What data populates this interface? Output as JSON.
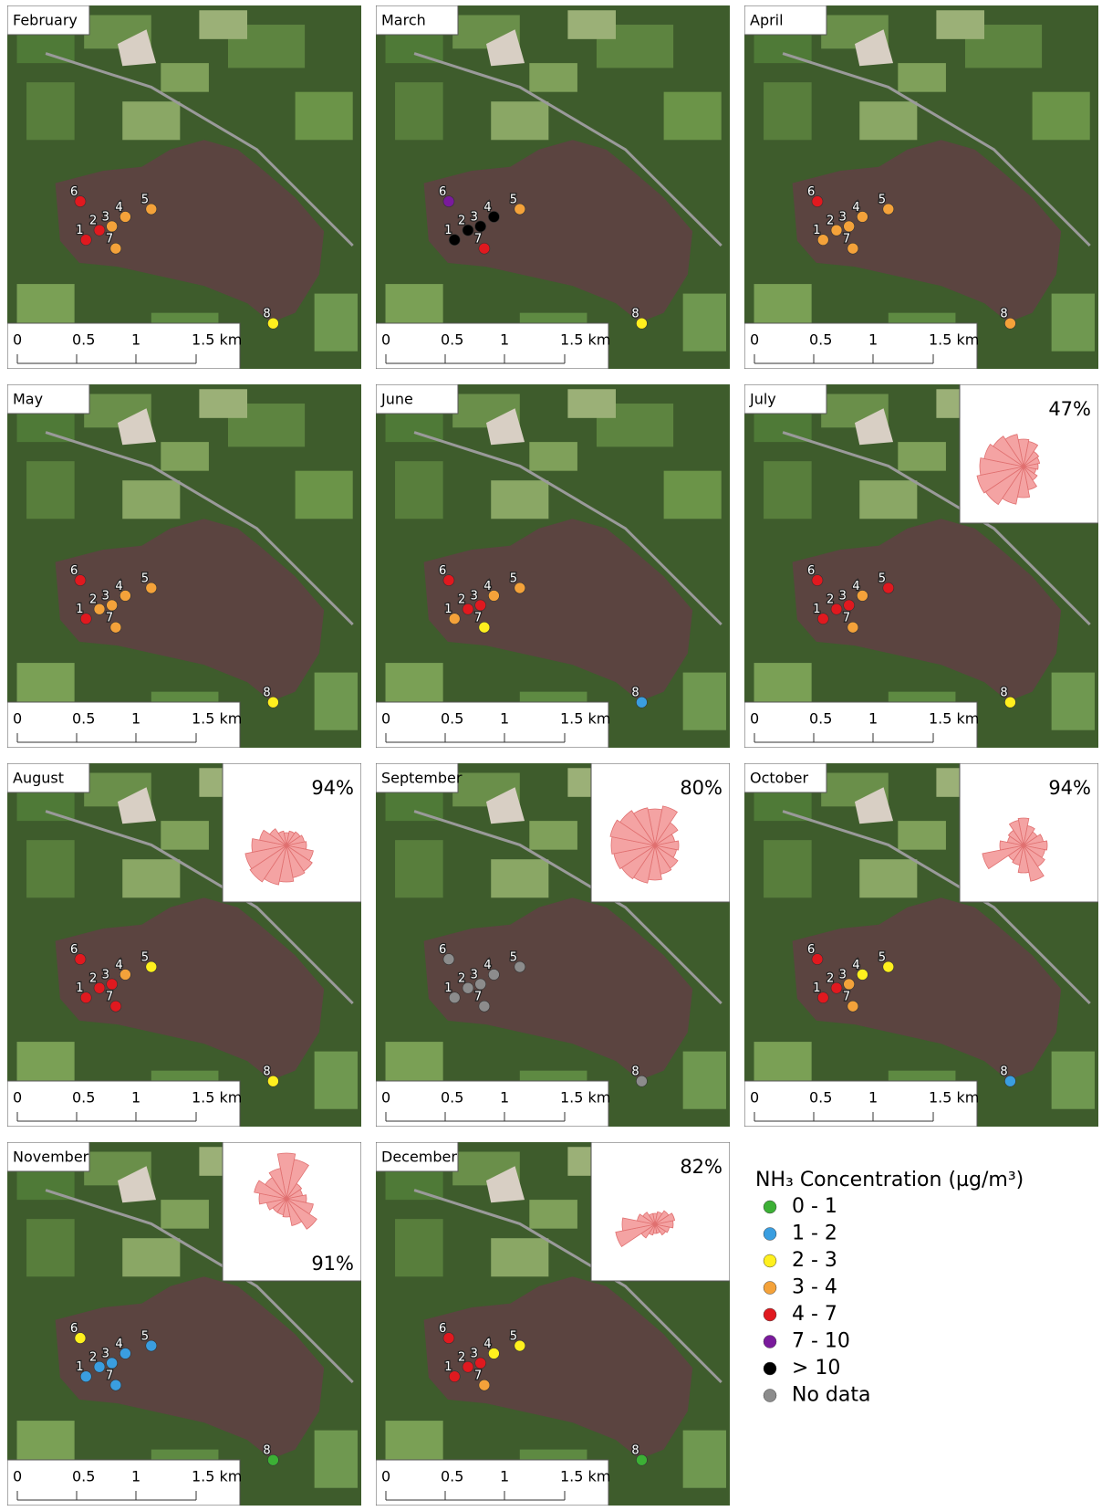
{
  "legend": {
    "title": "NH₃ Concentration (µg/m³)",
    "entries": [
      {
        "label": "0 - 1",
        "color": "#3cb035"
      },
      {
        "label": "1 - 2",
        "color": "#3a9ee0"
      },
      {
        "label": "2 - 3",
        "color": "#fff01e"
      },
      {
        "label": "3 - 4",
        "color": "#f4a23a"
      },
      {
        "label": "4 - 7",
        "color": "#e0191f"
      },
      {
        "label": "7 - 10",
        "color": "#7a1a9c"
      },
      {
        "label": "> 10",
        "color": "#000000"
      },
      {
        "label": "No data",
        "color": "#8c8c8c"
      }
    ]
  },
  "site_labels": [
    "1",
    "2",
    "3",
    "4",
    "5",
    "6",
    "7",
    "8"
  ],
  "scale_bar": {
    "labels": [
      "0",
      "0.5",
      "1",
      "1.5 km"
    ]
  },
  "panels": [
    {
      "month": "February",
      "sites": [
        "4 - 7",
        "4 - 7",
        "3 - 4",
        "3 - 4",
        "3 - 4",
        "4 - 7",
        "3 - 4",
        "2 - 3"
      ]
    },
    {
      "month": "March",
      "sites": [
        "> 10",
        "> 10",
        "> 10",
        "> 10",
        "3 - 4",
        "7 - 10",
        "4 - 7",
        "2 - 3"
      ]
    },
    {
      "month": "April",
      "sites": [
        "3 - 4",
        "3 - 4",
        "3 - 4",
        "3 - 4",
        "3 - 4",
        "4 - 7",
        "3 - 4",
        "3 - 4"
      ]
    },
    {
      "month": "May",
      "sites": [
        "4 - 7",
        "3 - 4",
        "3 - 4",
        "3 - 4",
        "3 - 4",
        "4 - 7",
        "3 - 4",
        "2 - 3"
      ]
    },
    {
      "month": "June",
      "sites": [
        "3 - 4",
        "4 - 7",
        "4 - 7",
        "3 - 4",
        "3 - 4",
        "4 - 7",
        "2 - 3",
        "1 - 2"
      ]
    },
    {
      "month": "July",
      "sites": [
        "4 - 7",
        "4 - 7",
        "4 - 7",
        "3 - 4",
        "4 - 7",
        "4 - 7",
        "3 - 4",
        "2 - 3"
      ],
      "wind_rose": "47%"
    },
    {
      "month": "August",
      "sites": [
        "4 - 7",
        "4 - 7",
        "4 - 7",
        "3 - 4",
        "2 - 3",
        "4 - 7",
        "4 - 7",
        "2 - 3"
      ],
      "wind_rose": "94%"
    },
    {
      "month": "September",
      "sites": [
        "No data",
        "No data",
        "No data",
        "No data",
        "No data",
        "No data",
        "No data",
        "No data"
      ],
      "wind_rose": "80%"
    },
    {
      "month": "October",
      "sites": [
        "4 - 7",
        "4 - 7",
        "3 - 4",
        "2 - 3",
        "2 - 3",
        "4 - 7",
        "3 - 4",
        "1 - 2"
      ],
      "wind_rose": "94%"
    },
    {
      "month": "November",
      "sites": [
        "1 - 2",
        "1 - 2",
        "1 - 2",
        "1 - 2",
        "1 - 2",
        "2 - 3",
        "1 - 2",
        "0 - 1"
      ],
      "wind_rose": "91%"
    },
    {
      "month": "December",
      "sites": [
        "4 - 7",
        "4 - 7",
        "4 - 7",
        "2 - 3",
        "2 - 3",
        "4 - 7",
        "3 - 4",
        "0 - 1"
      ],
      "wind_rose": "82%"
    }
  ]
}
